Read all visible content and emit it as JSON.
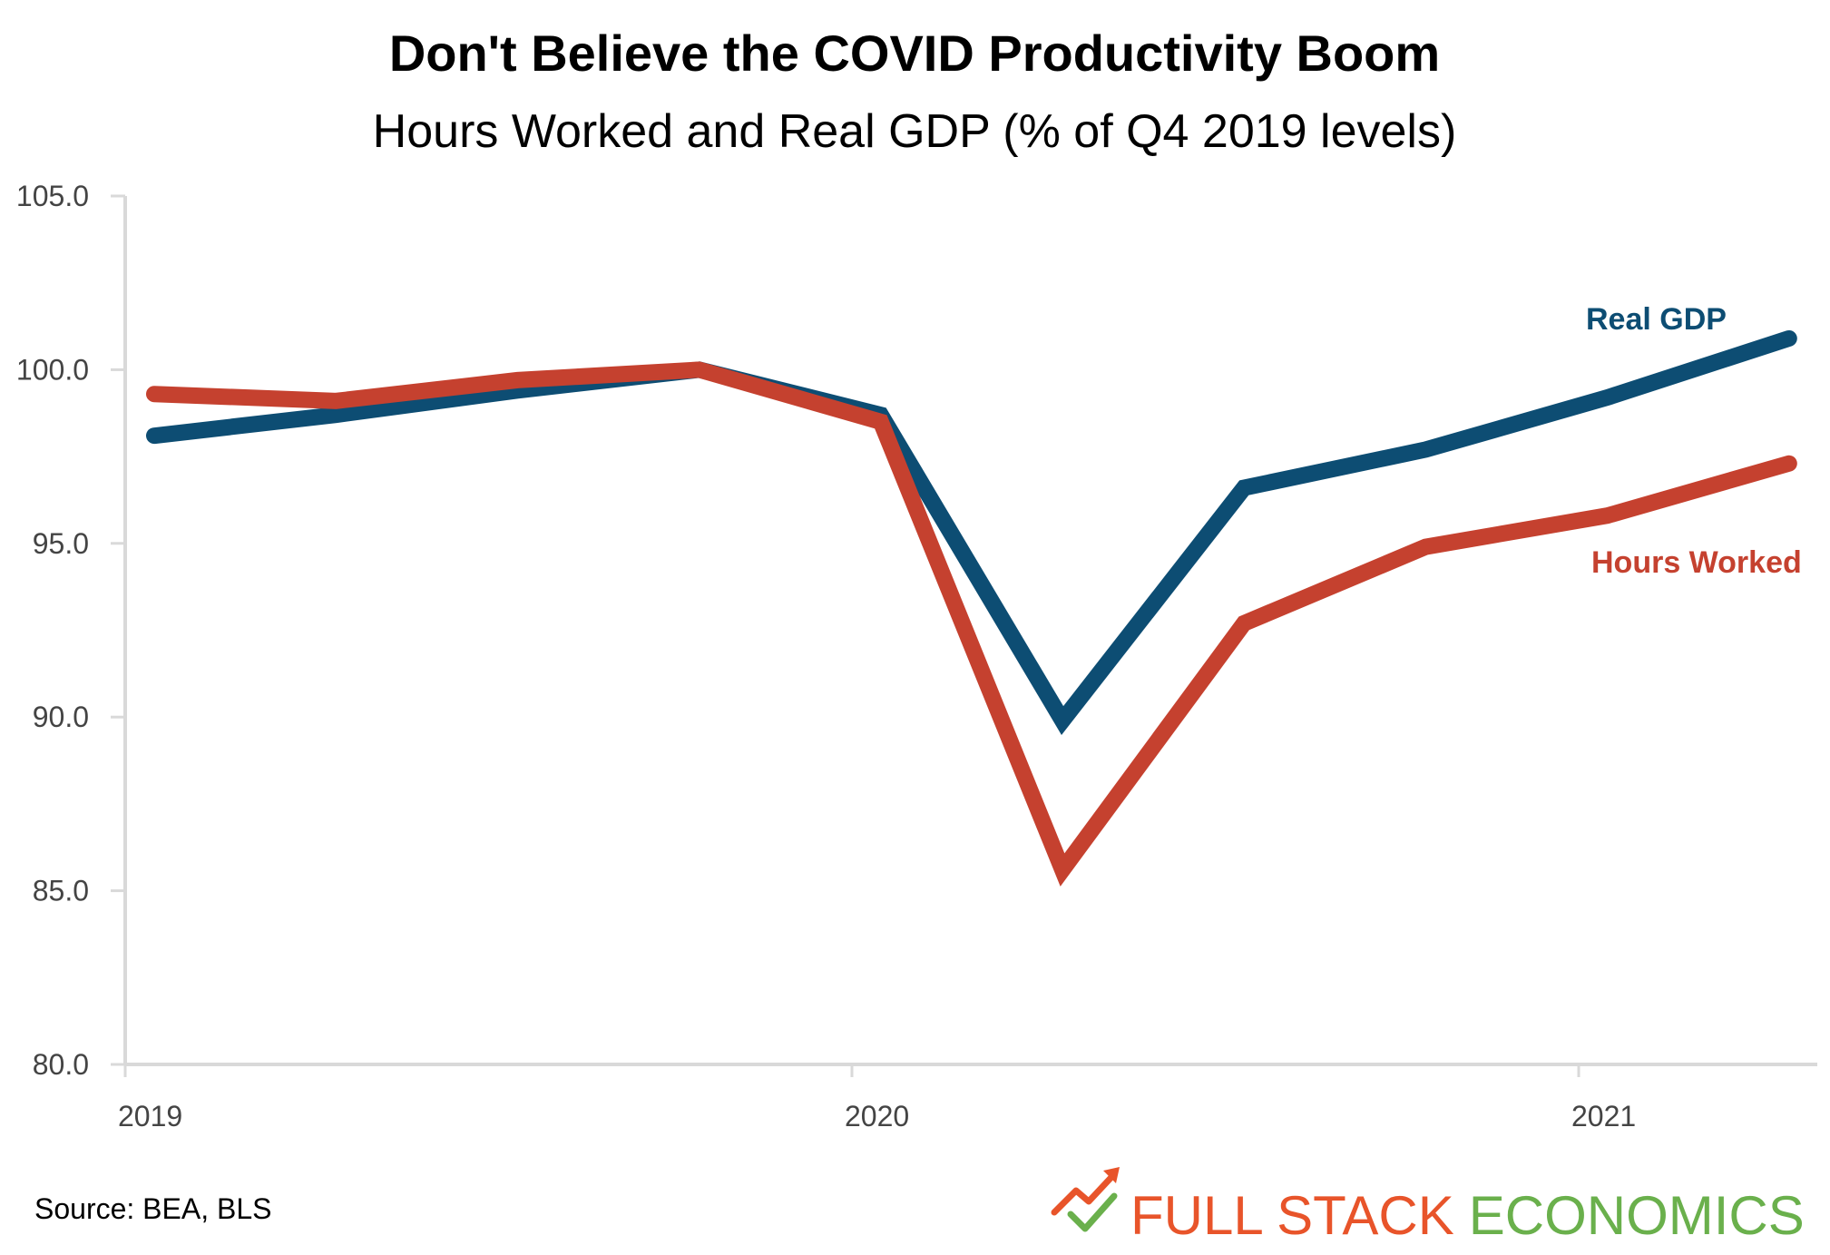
{
  "chart_data": {
    "type": "line",
    "title": "Don't Believe the COVID Productivity Boom",
    "subtitle": "Hours Worked and Real GDP (% of Q4 2019 levels)",
    "xlabel": "",
    "ylabel": "",
    "ylim": [
      80.0,
      105.0
    ],
    "y_ticks": [
      "80.0",
      "85.0",
      "90.0",
      "95.0",
      "100.0",
      "105.0"
    ],
    "x_ticks": [
      "2019",
      "2020",
      "2021"
    ],
    "x": [
      "2019 Q1",
      "2019 Q2",
      "2019 Q3",
      "2019 Q4",
      "2020 Q1",
      "2020 Q2",
      "2020 Q3",
      "2020 Q4",
      "2021 Q1",
      "2021 Q2"
    ],
    "series": [
      {
        "name": "Real GDP",
        "color": "#0d4d73",
        "values": [
          98.1,
          98.7,
          99.4,
          100.0,
          98.7,
          89.9,
          96.6,
          97.7,
          99.2,
          100.9
        ]
      },
      {
        "name": "Hours Worked",
        "color": "#c5412f",
        "values": [
          99.3,
          99.1,
          99.7,
          100.0,
          98.5,
          85.6,
          92.7,
          94.9,
          95.8,
          97.3
        ]
      }
    ],
    "grid": false,
    "legend": "direct labels at right end of lines"
  },
  "footer": {
    "source": "Source: BEA, BLS",
    "brand_part1": "FULL STACK",
    "brand_part2": "ECONOMICS",
    "brand_color1": "#e8542a",
    "brand_color2": "#6ab04c",
    "logo_icon": "trend-checkmark-icon"
  }
}
